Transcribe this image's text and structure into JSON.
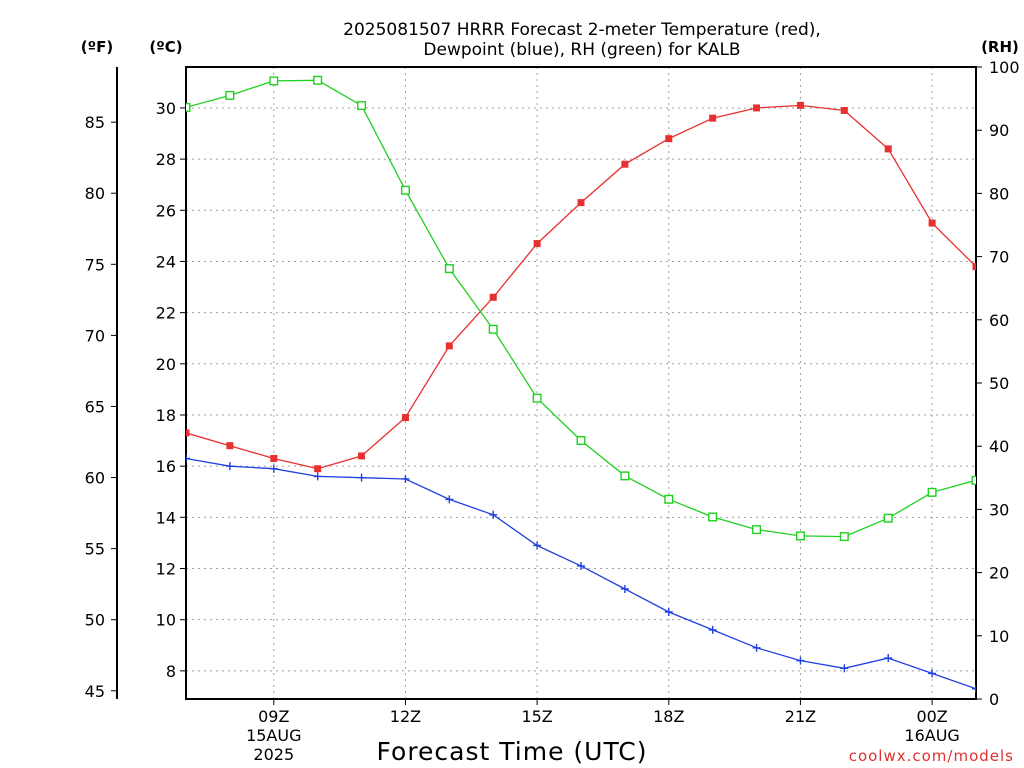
{
  "chart_data": {
    "type": "line",
    "title_line1": "2025081507 HRRR Forecast 2-meter Temperature (red),",
    "title_line2": "Dewpoint (blue), RH (green) for KALB",
    "xlabel": "Forecast Time (UTC)",
    "units": {
      "fahrenheit": "(ºF)",
      "celsius": "(ºC)",
      "rh": "(RH)"
    },
    "x_hours": [
      7,
      8,
      9,
      10,
      11,
      12,
      13,
      14,
      15,
      16,
      17,
      18,
      19,
      20,
      21,
      22,
      23,
      24,
      25
    ],
    "x_ticks": [
      {
        "hour": 9,
        "lines": [
          "09Z",
          "15AUG",
          "2025"
        ]
      },
      {
        "hour": 12,
        "lines": [
          "12Z"
        ]
      },
      {
        "hour": 15,
        "lines": [
          "15Z"
        ]
      },
      {
        "hour": 18,
        "lines": [
          "18Z"
        ]
      },
      {
        "hour": 21,
        "lines": [
          "21Z"
        ]
      },
      {
        "hour": 24,
        "lines": [
          "00Z",
          "16AUG"
        ]
      }
    ],
    "xlim": [
      7,
      25
    ],
    "ylim_c": [
      6.9,
      31.6
    ],
    "ylim_rh": [
      0,
      100
    ],
    "yticks_c": [
      8,
      10,
      12,
      14,
      16,
      18,
      20,
      22,
      24,
      26,
      28,
      30
    ],
    "yticks_f": [
      45,
      50,
      55,
      60,
      65,
      70,
      75,
      80,
      85
    ],
    "yticks_rh": [
      0,
      10,
      20,
      30,
      40,
      50,
      60,
      70,
      80,
      90,
      100
    ],
    "series": [
      {
        "name": "Temperature",
        "axis": "c",
        "color": "#e83030",
        "marker": "square-filled",
        "values": [
          17.3,
          16.8,
          16.3,
          15.9,
          16.4,
          17.9,
          20.7,
          22.6,
          24.7,
          26.3,
          27.8,
          28.8,
          29.6,
          30.0,
          30.1,
          29.9,
          28.4,
          25.5,
          23.8
        ]
      },
      {
        "name": "Dewpoint",
        "axis": "c",
        "color": "#2040e0",
        "marker": "plus",
        "values": [
          16.3,
          16.0,
          15.9,
          15.6,
          15.55,
          15.5,
          14.7,
          14.1,
          12.9,
          12.1,
          11.2,
          10.3,
          9.6,
          8.9,
          8.4,
          8.1,
          8.5,
          7.9,
          7.3
        ]
      },
      {
        "name": "RH",
        "axis": "rh",
        "color": "#20d020",
        "marker": "square-open",
        "values": [
          93.6,
          95.5,
          97.8,
          97.9,
          93.9,
          80.5,
          68.1,
          58.5,
          47.6,
          40.9,
          35.3,
          31.6,
          28.8,
          26.8,
          25.8,
          25.7,
          28.6,
          32.7,
          34.6
        ]
      }
    ],
    "grid": true,
    "watermark": "coolwx.com/models"
  }
}
